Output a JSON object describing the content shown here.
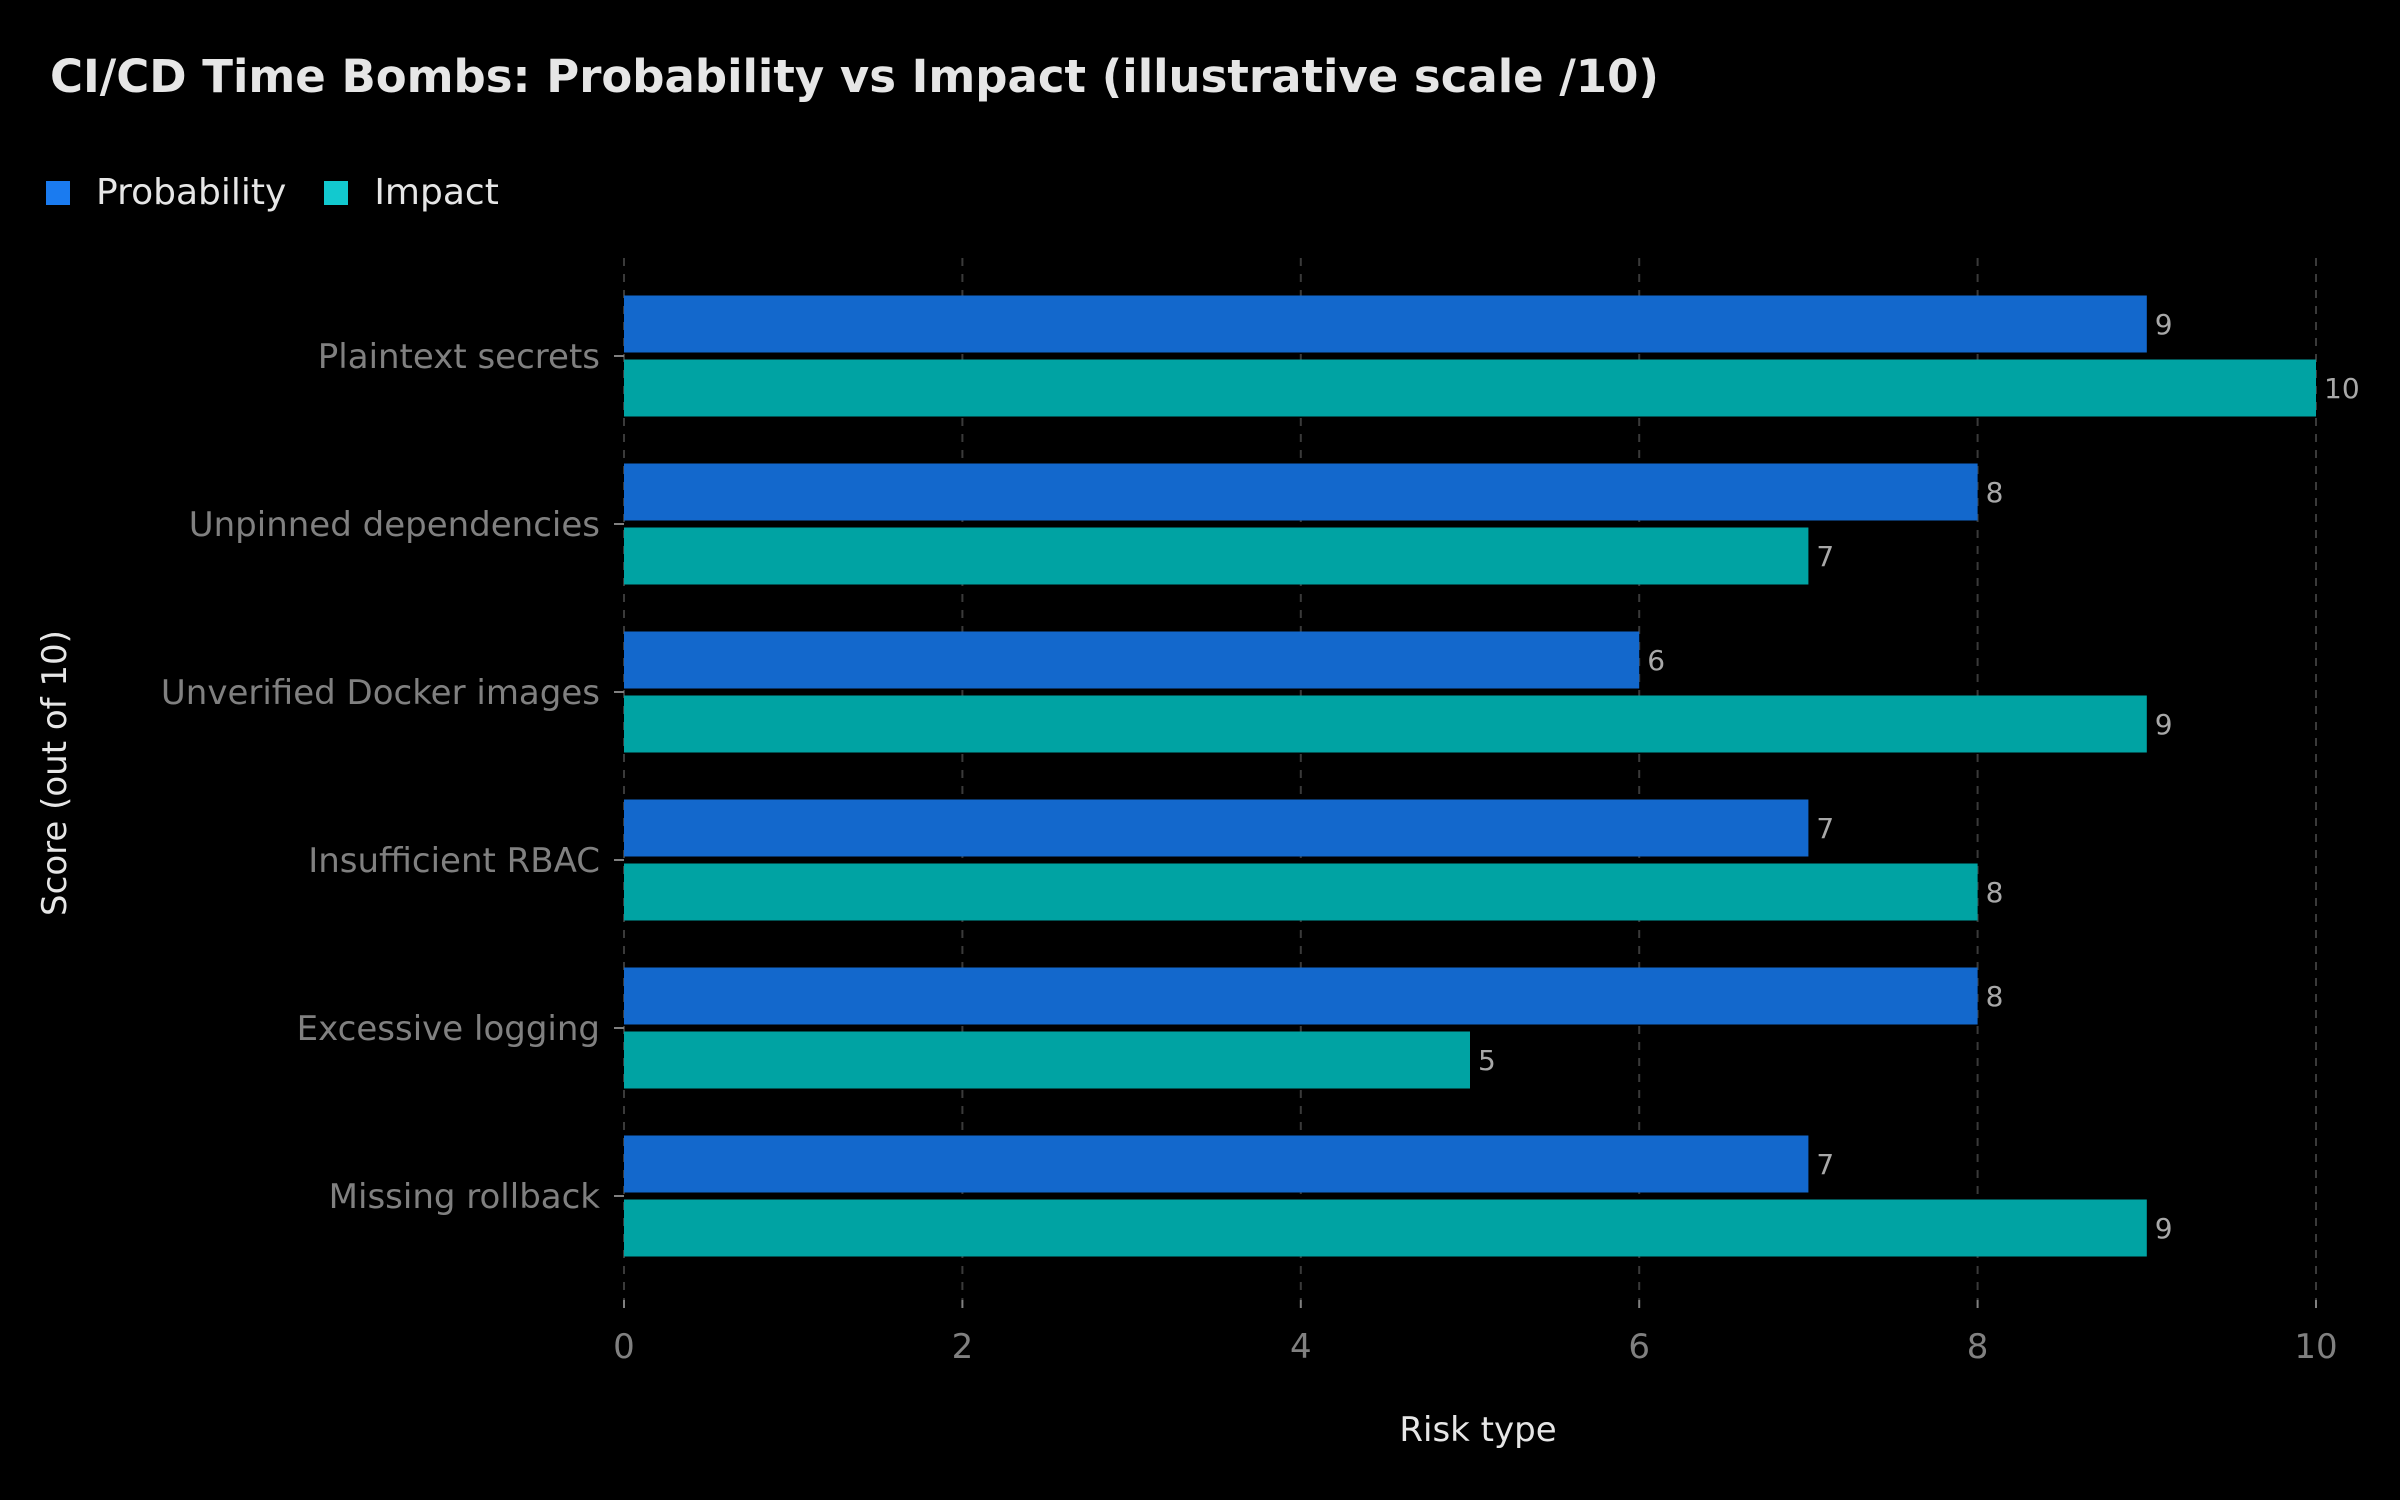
{
  "chart_data": {
    "type": "bar",
    "orientation": "horizontal",
    "title": "CI/CD Time Bombs: Probability vs Impact (illustrative scale /10)",
    "xlabel": "Risk type",
    "ylabel": "Score (out of 10)",
    "categories": [
      "Plaintext secrets",
      "Unpinned dependencies",
      "Unverified Docker images",
      "Insufficient RBAC",
      "Excessive logging",
      "Missing rollback"
    ],
    "series": [
      {
        "name": "Probability",
        "color": "#1a7bf0",
        "bar_color": "#1368cc",
        "values": [
          9,
          8,
          6,
          7,
          8,
          7
        ]
      },
      {
        "name": "Impact",
        "color": "#12c9cf",
        "bar_color": "#00a3a3",
        "values": [
          10,
          7,
          9,
          8,
          5,
          9
        ]
      }
    ],
    "xlim": [
      0,
      10
    ],
    "ticks": [
      0,
      2,
      4,
      6,
      8,
      10
    ],
    "grid": true,
    "legend": "top-left",
    "data_labels": true
  },
  "colors": {
    "background": "#000000",
    "grid": "#3a3a3a",
    "tick_label": "#808080",
    "axis_label": "#e6e6e6",
    "data_label": "#a8a8a8"
  }
}
